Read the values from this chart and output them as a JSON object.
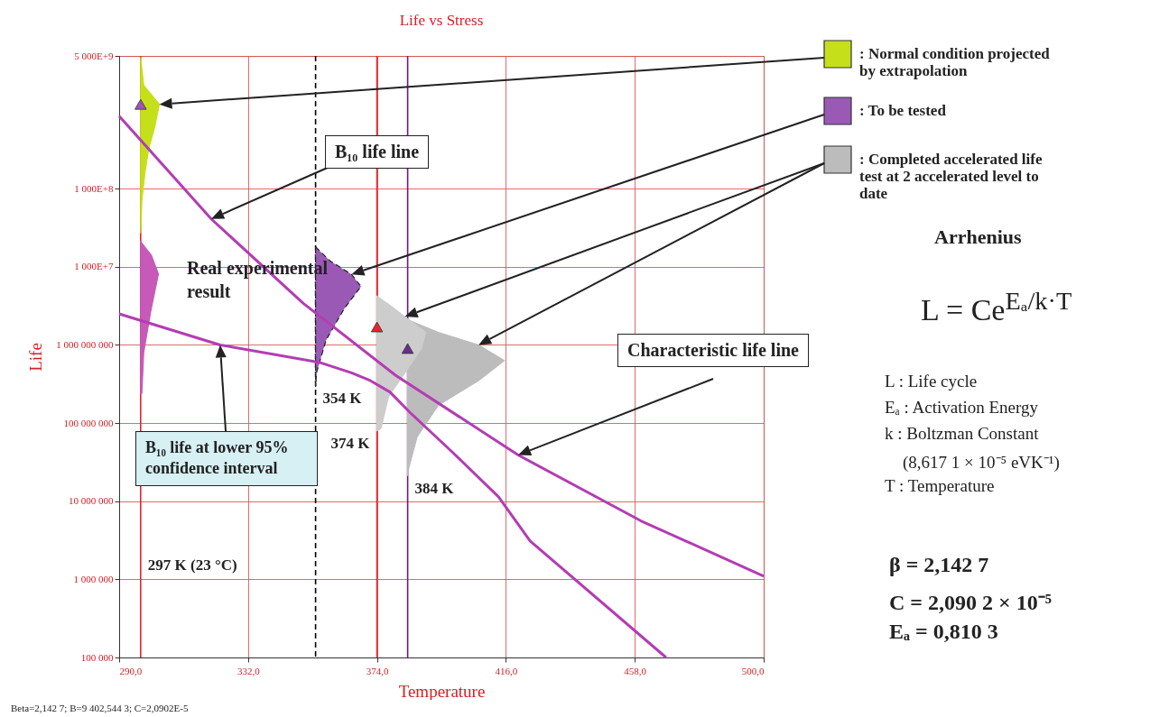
{
  "chart_data": {
    "type": "line",
    "title": "Life vs Stress",
    "xlabel": "Temperature",
    "ylabel": "Life",
    "log": "y",
    "grid": true,
    "legend": "right",
    "xlim": [
      290,
      500
    ],
    "xticks": [
      {
        "value": 290,
        "label": "290,0"
      },
      {
        "value": 332,
        "label": "332,0"
      },
      {
        "value": 374,
        "label": "374,0"
      },
      {
        "value": 416,
        "label": "416,0"
      },
      {
        "value": 458,
        "label": "458,0"
      },
      {
        "value": 500,
        "label": "500,0"
      }
    ],
    "ylim": [
      100000,
      5000000000000
    ],
    "yticks": [
      {
        "value": 100000,
        "label": "100 000"
      },
      {
        "value": 1000000,
        "label": "1 000 000"
      },
      {
        "value": 10000000,
        "label": "10 000 000"
      },
      {
        "value": 100000000,
        "label": "100 000 000"
      },
      {
        "value": 1000000000,
        "label": "1 000 000 000"
      },
      {
        "value": 10000000000,
        "label": "1 000E+7"
      },
      {
        "value": 100000000000,
        "label": "1 000E+8"
      },
      {
        "value": 5000000000000,
        "label": "5 000E+9"
      }
    ],
    "series": [
      {
        "type": "area",
        "name": ": Normal condition projected by extrapolation",
        "color": "#c5e01a",
        "x": [
          297,
          298,
          303.1,
          301.6,
          299.6,
          298.4,
          297.4,
          297
        ],
        "values": [
          4800000000000.0,
          2100000000000.0,
          1200000000000.0,
          620000000000.0,
          320000000000.0,
          160000000000.0,
          70000000000.0,
          27000000000.0
        ]
      },
      {
        "type": "area",
        "color": "#c75ab8",
        "x": [
          297,
          300.5,
          302.8,
          300.3,
          298.0,
          297.4
        ],
        "values": [
          21000000000.0,
          14000000000.0,
          8100000000.0,
          2700000000.0,
          800000000.0,
          240000000.0
        ]
      },
      {
        "type": "area",
        "name": ": To be tested",
        "color": "#9b59b6",
        "line_style": "dashed",
        "x": [
          354,
          358.6,
          365.7,
          368.8,
          363.3,
          357.4,
          354.3,
          354
        ],
        "values": [
          18000000000.0,
          12000000000.0,
          8000000000.0,
          5600000000.0,
          2900000000.0,
          1150000000.0,
          440000000.0,
          290000000.0
        ]
      },
      {
        "type": "area",
        "name": ": Completed accelerated life test at 2 accelerated level to date",
        "color": "#bcbcbc",
        "x": [
          384,
          394.0,
          407.1,
          415.5,
          407.1,
          394.0,
          387.1,
          384.3,
          384
        ],
        "values": [
          2100000000.0,
          1450000000.0,
          1000000000.0,
          630000000.0,
          350000000.0,
          170000000.0,
          67000000.0,
          26000000.0,
          21000000.0
        ]
      },
      {
        "type": "area",
        "color": "#cdcdcd",
        "x": [
          374,
          377.8,
          383.1,
          389.9,
          388.5,
          383.1,
          377.8,
          375.3,
          374
        ],
        "values": [
          4200000000.0,
          3300000000.0,
          2300000000.0,
          1450000000.0,
          900000000.0,
          440000000.0,
          220000000.0,
          85000000.0,
          80000000.0
        ]
      },
      {
        "color": "#b43cb4",
        "x": [
          290,
          320,
          350,
          380,
          420,
          460,
          500
        ],
        "values": [
          850000000000.0,
          41000000000.0,
          3400000000.0,
          410000000.0,
          39000000.0,
          5600000.0,
          1100000.0
        ]
      },
      {
        "color": "#b43cb4",
        "x": [
          290,
          322.9,
          355.1,
          365.7,
          371.8,
          378.2,
          384.8,
          398.7,
          413.6,
          423.9,
          468.2
        ],
        "values": [
          2500000000.0,
          1000000000.0,
          600000000.0,
          440000000.0,
          350000000.0,
          250000000.0,
          136000000.0,
          42000000.0,
          11400000.0,
          3100000.0,
          100000.0
        ]
      },
      {
        "type": "scatter",
        "marker": "triangle",
        "x": [
          297,
          374,
          384
        ],
        "values": [
          1200000000000.0,
          1700000000.0,
          900000000.0
        ],
        "colors": [
          "#a252b8",
          "#e8242a",
          "#6a2d8a"
        ]
      }
    ],
    "ref_lines": [
      {
        "axis": "x",
        "value": 297,
        "label": "297 K (23 °C)",
        "color": "#e8242a"
      },
      {
        "axis": "x",
        "value": 354,
        "label": "354 K",
        "color": "#000000",
        "line_style": "dashed"
      },
      {
        "axis": "x",
        "value": 374,
        "label": "374 K",
        "color": "#e8242a"
      },
      {
        "axis": "x",
        "value": 384,
        "label": "384 K",
        "color": "#6a1b7d"
      }
    ],
    "annotations": [
      "B₁₀ life line",
      "Characteristic life line",
      "B₁₀ life at lower 95% confidence interval",
      "Real experimental result",
      "Arrhenius",
      "L = Ce$^{Eₐ/k·T}$",
      "L  : Life cycle",
      "Eₐ : Activation Energy",
      "k : Boltzman Constant",
      "(8,617 1 × 10⁻⁵ eVK⁻¹)",
      "T : Temperature",
      "β = 2,142 7",
      "C = 2,090 2 × 10⁻⁵",
      "Eₐ = 0,810 3",
      "Beta=2,142 7; B=9 402,544 3; C=2,0902E-5"
    ]
  }
}
